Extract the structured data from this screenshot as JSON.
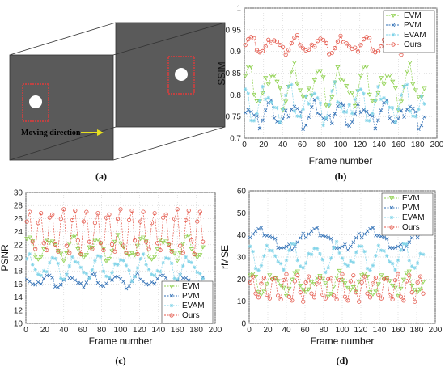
{
  "colors": {
    "EVM": "#8fd14f",
    "PVM": "#2f6fb5",
    "EVAM": "#7fd3e8",
    "Ours": "#e4574a"
  },
  "diagram": {
    "caption": "(a)",
    "arrow_label": "Moving direction"
  },
  "chart_data": [
    {
      "id": "ssim",
      "type": "line",
      "caption": "(b)",
      "xlabel": "Frame number",
      "ylabel": "SSIM",
      "xlim": [
        0,
        200
      ],
      "ylim": [
        0.7,
        1.0
      ],
      "xticks": [
        "0",
        "20",
        "40",
        "60",
        "80",
        "100",
        "120",
        "140",
        "160",
        "180",
        "200"
      ],
      "yticks": [
        "0.7",
        "0.75",
        "0.8",
        "0.85",
        "0.9",
        "0.95",
        "1"
      ],
      "legend_position": "top-right",
      "x": {
        "start": 1,
        "end": 188,
        "step": 3
      },
      "series": [
        {
          "name": "EVM",
          "marker": "triangle-down",
          "base": 0.82,
          "amp": 0.035,
          "period": 24,
          "phase": 0.5,
          "flicker": 0.02
        },
        {
          "name": "PVM",
          "marker": "x",
          "base": 0.755,
          "amp": 0.02,
          "period": 24,
          "phase": 1.0,
          "flicker": 0.015
        },
        {
          "name": "EVAM",
          "marker": "star",
          "base": 0.78,
          "amp": 0.03,
          "period": 24,
          "phase": 2.0,
          "flicker": 0.02
        },
        {
          "name": "Ours",
          "marker": "circle",
          "base": 0.915,
          "amp": 0.015,
          "period": 24,
          "phase": 0.0,
          "flicker": 0.008
        }
      ]
    },
    {
      "id": "psnr",
      "type": "line",
      "caption": "(c)",
      "xlabel": "Frame number",
      "ylabel": "PSNR",
      "xlim": [
        0,
        200
      ],
      "ylim": [
        10,
        30
      ],
      "xticks": [
        "0",
        "20",
        "40",
        "60",
        "80",
        "100",
        "120",
        "140",
        "160",
        "180",
        "200"
      ],
      "yticks": [
        "10",
        "12",
        "14",
        "16",
        "18",
        "20",
        "22",
        "24",
        "26",
        "28",
        "30"
      ],
      "legend_position": "bottom-right",
      "x": {
        "start": 1,
        "end": 188,
        "step": 3
      },
      "series": [
        {
          "name": "EVM",
          "marker": "triangle-down",
          "base": 21.5,
          "amp": 1.5,
          "period": 24,
          "phase": 1.0,
          "flicker": 0.6
        },
        {
          "name": "PVM",
          "marker": "x",
          "base": 16.5,
          "amp": 0.8,
          "period": 24,
          "phase": 2.0,
          "flicker": 0.4
        },
        {
          "name": "EVAM",
          "marker": "star",
          "base": 18.5,
          "amp": 1.5,
          "period": 24,
          "phase": 0.5,
          "flicker": 0.6
        },
        {
          "name": "Ours",
          "marker": "circle",
          "base": 24.0,
          "amp": 3.5,
          "period": 12,
          "phase": 0.0,
          "flicker": 0.4
        }
      ]
    },
    {
      "id": "rmse",
      "type": "line",
      "caption": "(d)",
      "xlabel": "Frame number",
      "ylabel": "rMSE",
      "xlim": [
        0,
        200
      ],
      "ylim": [
        0,
        60
      ],
      "xticks": [
        "0",
        "20",
        "40",
        "60",
        "80",
        "100",
        "120",
        "140",
        "160",
        "180",
        "200"
      ],
      "yticks": [
        "0",
        "10",
        "20",
        "30",
        "40",
        "50",
        "60"
      ],
      "legend_position": "top-right",
      "x": {
        "start": 1,
        "end": 188,
        "step": 3
      },
      "series": [
        {
          "name": "EVM",
          "marker": "triangle-down",
          "base": 18.0,
          "amp": 4.0,
          "period": 24,
          "phase": 1.0,
          "flicker": 2.0
        },
        {
          "name": "PVM",
          "marker": "x",
          "base": 38.0,
          "amp": 4.0,
          "period": 60,
          "phase": 0.5,
          "flicker": 1.5
        },
        {
          "name": "EVAM",
          "marker": "star",
          "base": 30.0,
          "amp": 5.0,
          "period": 24,
          "phase": 2.0,
          "flicker": 2.0
        },
        {
          "name": "Ours",
          "marker": "circle",
          "base": 16.0,
          "amp": 6.0,
          "period": 12,
          "phase": 0.0,
          "flicker": 1.0
        }
      ]
    }
  ]
}
